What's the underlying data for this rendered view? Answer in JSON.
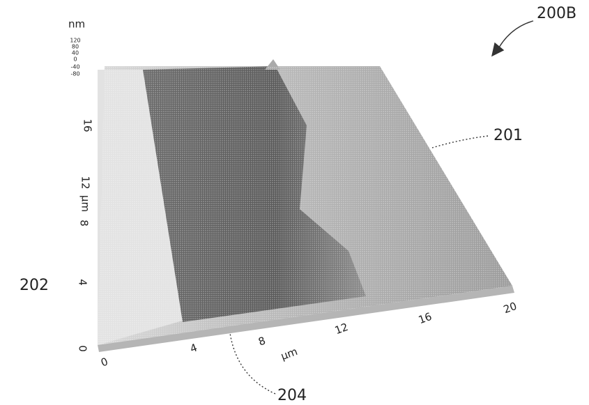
{
  "reference_label": "200B",
  "callouts": [
    "201",
    "202",
    "204"
  ],
  "z_axis": {
    "unit": "nm",
    "ticks": [
      "120",
      "80",
      "40",
      "0",
      "-40",
      "-80"
    ]
  },
  "y_axis": {
    "unit": "µm",
    "ticks": [
      "0",
      "4",
      "8",
      "12",
      "16"
    ]
  },
  "x_axis": {
    "unit": "µm",
    "ticks": [
      "0",
      "4",
      "8",
      "12",
      "16",
      "20"
    ]
  }
}
